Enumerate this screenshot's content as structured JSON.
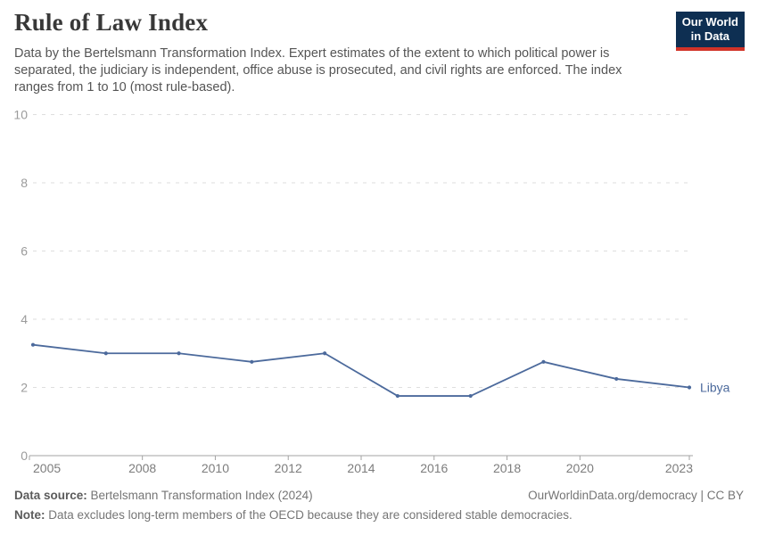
{
  "header": {
    "title": "Rule of Law Index",
    "subtitle": "Data by the Bertelsmann Transformation Index. Expert estimates of the extent to which political power is separated, the judiciary is independent, office abuse is prosecuted, and civil rights are enforced. The index ranges from 1 to 10 (most rule-based)."
  },
  "logo": {
    "line1": "Our World",
    "line2": "in Data"
  },
  "chart_data": {
    "type": "line",
    "title": "Rule of Law Index",
    "x": [
      2005,
      2007,
      2009,
      2011,
      2013,
      2015,
      2017,
      2019,
      2021,
      2023
    ],
    "series": [
      {
        "name": "Libya",
        "color": "#4c6a9c",
        "values": [
          3.25,
          3.0,
          3.0,
          2.75,
          3.0,
          1.75,
          1.75,
          2.75,
          2.25,
          2.0
        ]
      }
    ],
    "xlabel": "",
    "ylabel": "",
    "xlim": [
      2005,
      2023
    ],
    "ylim": [
      0,
      10
    ],
    "x_ticks": [
      2005,
      2008,
      2010,
      2012,
      2014,
      2016,
      2018,
      2020,
      2023
    ],
    "y_ticks": [
      0,
      2,
      4,
      6,
      8,
      10
    ],
    "grid": "horizontal-dashed",
    "legend_position": "end-of-line-label"
  },
  "footer": {
    "source_label": "Data source:",
    "source_text": "Bertelsmann Transformation Index (2024)",
    "credit": "OurWorldinData.org/democracy | CC BY",
    "note_label": "Note:",
    "note_text": "Data excludes long-term members of the OECD because they are considered stable democracies."
  },
  "colors": {
    "series_line": "#4c6a9c",
    "logo_background": "#0e2f52",
    "logo_underline": "#d13328",
    "gridline": "#dedede",
    "axis_baseline": "#a3a3a3",
    "y_tick_label": "#9b9b9b",
    "x_tick_label": "#7d7d7d"
  }
}
